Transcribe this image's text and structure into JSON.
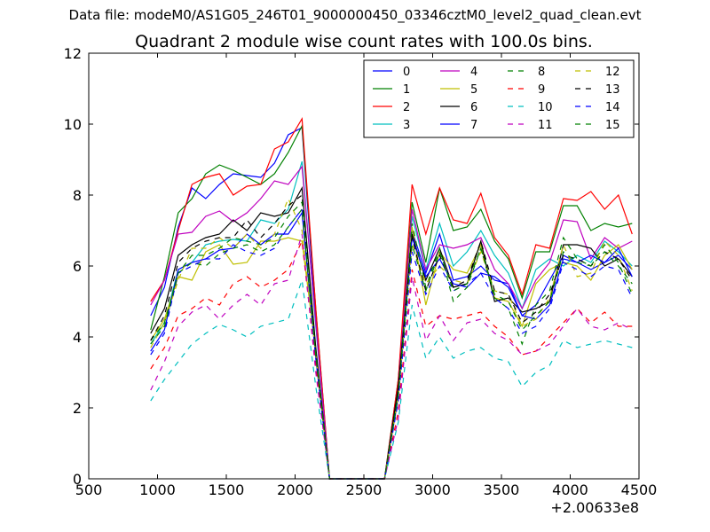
{
  "figure": {
    "suptitle": "Data file: modeM0/AS1G05_246T01_9000000450_03346cztM0_level2_quad_clean.evt",
    "title": "Quadrant 2 module wise count rates with 100.0s bins.",
    "x_offset_label": "+2.00633e8"
  },
  "chart_data": {
    "type": "line",
    "title": "Quadrant 2 module wise count rates with 100.0s bins.",
    "xlabel": "",
    "ylabel": "",
    "xlim": [
      500,
      4500
    ],
    "ylim": [
      0,
      12
    ],
    "x_ticks": [
      500,
      1000,
      1500,
      2000,
      2500,
      3000,
      3500,
      4000,
      4500
    ],
    "x_tick_labels": [
      "500",
      "1000",
      "1500",
      "2000",
      "2500",
      "3000",
      "3500",
      "4000",
      "4500"
    ],
    "y_ticks": [
      0,
      2,
      4,
      6,
      8,
      10,
      12
    ],
    "y_tick_labels": [
      "0",
      "2",
      "4",
      "6",
      "8",
      "10",
      "12"
    ],
    "x_offset": "+2.00633e8",
    "legend_position": "top-right",
    "legend_columns": 4,
    "grid": false,
    "x": [
      950,
      1050,
      1150,
      1250,
      1350,
      1450,
      1550,
      1650,
      1750,
      1850,
      1950,
      2050,
      2150,
      2250,
      2350,
      2450,
      2550,
      2650,
      2750,
      2850,
      2950,
      3050,
      3150,
      3250,
      3350,
      3450,
      3550,
      3650,
      3750,
      3850,
      3950,
      4050,
      4150,
      4250,
      4350,
      4450
    ],
    "series": [
      {
        "name": "0",
        "color": "#0000ff",
        "dash": "solid",
        "values": [
          4.6,
          5.4,
          7.1,
          8.2,
          7.9,
          8.3,
          8.6,
          8.55,
          8.5,
          8.9,
          9.7,
          9.9,
          4.5,
          0,
          0,
          0,
          0,
          0,
          2.6,
          7.0,
          5.8,
          6.9,
          5.6,
          5.7,
          6.0,
          5.6,
          5.5,
          4.6,
          4.9,
          5.6,
          6.3,
          6.1,
          5.9,
          6.1,
          6.3,
          5.9
        ]
      },
      {
        "name": "1",
        "color": "#008000",
        "dash": "solid",
        "values": [
          4.2,
          5.7,
          7.5,
          7.9,
          8.6,
          8.85,
          8.7,
          8.5,
          8.3,
          8.6,
          9.2,
          9.95,
          4.8,
          0,
          0,
          0,
          0,
          0,
          2.8,
          7.8,
          6.1,
          8.2,
          7.0,
          7.1,
          7.6,
          6.7,
          6.2,
          5.1,
          6.4,
          6.4,
          7.7,
          7.7,
          7.0,
          7.2,
          7.1,
          7.2
        ]
      },
      {
        "name": "2",
        "color": "#ff0000",
        "dash": "solid",
        "values": [
          5.0,
          5.6,
          7.0,
          8.3,
          8.5,
          8.6,
          8.0,
          8.25,
          8.3,
          9.3,
          9.5,
          10.15,
          4.8,
          0,
          0,
          0,
          0,
          0,
          2.8,
          8.3,
          6.9,
          8.2,
          7.3,
          7.2,
          8.05,
          6.8,
          6.3,
          5.2,
          6.6,
          6.5,
          7.9,
          7.85,
          8.1,
          7.6,
          8.0,
          6.9
        ]
      },
      {
        "name": "3",
        "color": "#00bfbf",
        "dash": "solid",
        "values": [
          3.8,
          4.4,
          5.9,
          6.1,
          6.6,
          6.7,
          6.75,
          6.7,
          7.3,
          7.2,
          7.6,
          8.95,
          4.3,
          0,
          0,
          0,
          0,
          0,
          2.5,
          7.4,
          5.9,
          7.2,
          6.0,
          6.4,
          7.0,
          6.3,
          5.8,
          4.8,
          5.9,
          6.2,
          6.0,
          6.3,
          6.1,
          6.7,
          6.4,
          6.0
        ]
      },
      {
        "name": "4",
        "color": "#bf00bf",
        "dash": "solid",
        "values": [
          4.9,
          5.6,
          6.9,
          6.95,
          7.4,
          7.55,
          7.25,
          7.5,
          7.9,
          8.4,
          8.3,
          8.8,
          4.4,
          0,
          0,
          0,
          0,
          0,
          2.6,
          7.6,
          5.9,
          6.6,
          6.5,
          6.6,
          6.8,
          5.9,
          5.5,
          4.8,
          5.6,
          6.1,
          7.3,
          7.25,
          6.2,
          6.8,
          6.5,
          6.7
        ]
      },
      {
        "name": "5",
        "color": "#bfbf00",
        "dash": "solid",
        "values": [
          3.9,
          4.5,
          5.7,
          5.6,
          6.4,
          6.6,
          6.05,
          6.1,
          6.7,
          6.7,
          6.8,
          6.7,
          3.6,
          0,
          0,
          0,
          0,
          0,
          2.4,
          7.1,
          4.9,
          6.4,
          5.9,
          5.8,
          6.6,
          5.1,
          5.0,
          4.3,
          5.5,
          5.9,
          6.1,
          6.0,
          5.6,
          6.3,
          6.6,
          5.9
        ]
      },
      {
        "name": "6",
        "color": "#000000",
        "dash": "solid",
        "values": [
          4.1,
          4.8,
          6.3,
          6.6,
          6.8,
          6.9,
          7.3,
          7.0,
          7.5,
          7.4,
          7.5,
          8.2,
          3.7,
          0,
          0,
          0,
          0,
          0,
          2.6,
          6.9,
          5.6,
          6.5,
          5.4,
          5.5,
          6.7,
          5.0,
          5.1,
          4.7,
          4.8,
          5.0,
          6.6,
          6.6,
          6.5,
          6.0,
          6.2,
          5.7
        ]
      },
      {
        "name": "7",
        "color": "#0000ff",
        "dash": "solid",
        "values": [
          3.6,
          4.2,
          5.9,
          6.1,
          6.2,
          6.45,
          6.5,
          6.9,
          6.6,
          6.9,
          6.9,
          7.5,
          3.4,
          0,
          0,
          0,
          0,
          0,
          2.3,
          6.8,
          5.7,
          6.2,
          5.5,
          5.4,
          5.8,
          5.7,
          5.4,
          4.6,
          4.5,
          4.9,
          6.2,
          6.1,
          6.3,
          6.1,
          6.5,
          5.7
        ]
      },
      {
        "name": "8",
        "color": "#008000",
        "dash": "dashed",
        "values": [
          3.9,
          4.4,
          5.8,
          6.1,
          6.0,
          6.35,
          6.5,
          6.6,
          6.4,
          6.6,
          7.1,
          7.6,
          3.5,
          0,
          0,
          0,
          0,
          0,
          2.4,
          7.2,
          5.4,
          6.5,
          5.0,
          5.4,
          6.5,
          5.1,
          4.8,
          3.8,
          4.9,
          5.3,
          6.8,
          6.2,
          6.0,
          6.6,
          6.1,
          5.2
        ]
      },
      {
        "name": "9",
        "color": "#ff0000",
        "dash": "dashed",
        "values": [
          3.1,
          3.7,
          4.6,
          4.8,
          5.1,
          4.9,
          5.5,
          5.7,
          5.4,
          5.6,
          5.9,
          6.7,
          3.2,
          0,
          0,
          0,
          0,
          0,
          1.9,
          5.9,
          4.3,
          4.6,
          4.5,
          4.6,
          4.7,
          4.3,
          4.0,
          3.5,
          3.6,
          4.0,
          4.4,
          4.8,
          4.4,
          4.7,
          4.3,
          4.3
        ]
      },
      {
        "name": "10",
        "color": "#00bfbf",
        "dash": "dashed",
        "values": [
          2.2,
          2.8,
          3.3,
          3.8,
          4.1,
          4.35,
          4.2,
          4.0,
          4.3,
          4.4,
          4.5,
          5.6,
          2.6,
          0,
          0,
          0,
          0,
          0,
          1.6,
          4.9,
          3.4,
          4.0,
          3.4,
          3.6,
          3.7,
          3.4,
          3.3,
          2.6,
          3.0,
          3.2,
          3.9,
          3.7,
          3.8,
          3.9,
          3.8,
          3.7
        ]
      },
      {
        "name": "11",
        "color": "#bf00bf",
        "dash": "dashed",
        "values": [
          2.5,
          3.3,
          4.3,
          4.7,
          4.9,
          4.5,
          4.9,
          5.2,
          4.9,
          5.5,
          5.6,
          6.9,
          3.0,
          0,
          0,
          0,
          0,
          0,
          1.7,
          5.7,
          3.9,
          4.6,
          3.9,
          4.4,
          4.5,
          4.1,
          3.9,
          3.5,
          3.6,
          3.8,
          4.3,
          4.8,
          4.3,
          4.2,
          4.4,
          4.2
        ]
      },
      {
        "name": "12",
        "color": "#bfbf00",
        "dash": "dashed",
        "values": [
          3.7,
          4.4,
          5.6,
          6.5,
          6.5,
          6.8,
          6.5,
          6.9,
          6.5,
          6.9,
          7.9,
          7.0,
          3.5,
          0,
          0,
          0,
          0,
          0,
          2.3,
          6.6,
          5.5,
          6.0,
          5.6,
          5.5,
          6.4,
          5.3,
          5.2,
          4.3,
          4.5,
          5.1,
          6.6,
          5.7,
          5.8,
          6.7,
          6.3,
          5.3
        ]
      },
      {
        "name": "13",
        "color": "#000000",
        "dash": "dashed",
        "values": [
          3.9,
          4.6,
          6.1,
          6.5,
          6.7,
          6.8,
          6.8,
          7.3,
          6.8,
          7.2,
          7.7,
          8.0,
          3.6,
          0,
          0,
          0,
          0,
          0,
          2.5,
          6.8,
          5.3,
          6.3,
          5.4,
          5.6,
          6.7,
          5.3,
          5.2,
          4.4,
          4.7,
          5.2,
          6.3,
          6.2,
          6.0,
          6.4,
          6.2,
          5.6
        ]
      },
      {
        "name": "14",
        "color": "#0000ff",
        "dash": "dashed",
        "values": [
          3.5,
          4.1,
          5.8,
          6.0,
          6.2,
          6.2,
          6.6,
          6.4,
          6.3,
          6.5,
          7.1,
          7.6,
          3.4,
          0,
          0,
          0,
          0,
          0,
          2.2,
          6.4,
          5.2,
          6.0,
          5.3,
          5.5,
          5.8,
          5.1,
          4.8,
          4.1,
          4.3,
          4.8,
          6.1,
          5.9,
          5.7,
          6.0,
          5.9,
          5.1
        ]
      },
      {
        "name": "15",
        "color": "#008000",
        "dash": "dashed",
        "values": [
          3.8,
          4.3,
          5.8,
          6.3,
          6.3,
          6.5,
          6.8,
          6.7,
          6.6,
          6.8,
          7.4,
          7.8,
          3.5,
          0,
          0,
          0,
          0,
          0,
          2.4,
          6.6,
          5.3,
          6.4,
          5.3,
          5.5,
          6.5,
          5.2,
          5.0,
          4.2,
          4.6,
          5.0,
          6.4,
          6.1,
          6.0,
          6.4,
          6.0,
          5.5
        ]
      }
    ]
  }
}
